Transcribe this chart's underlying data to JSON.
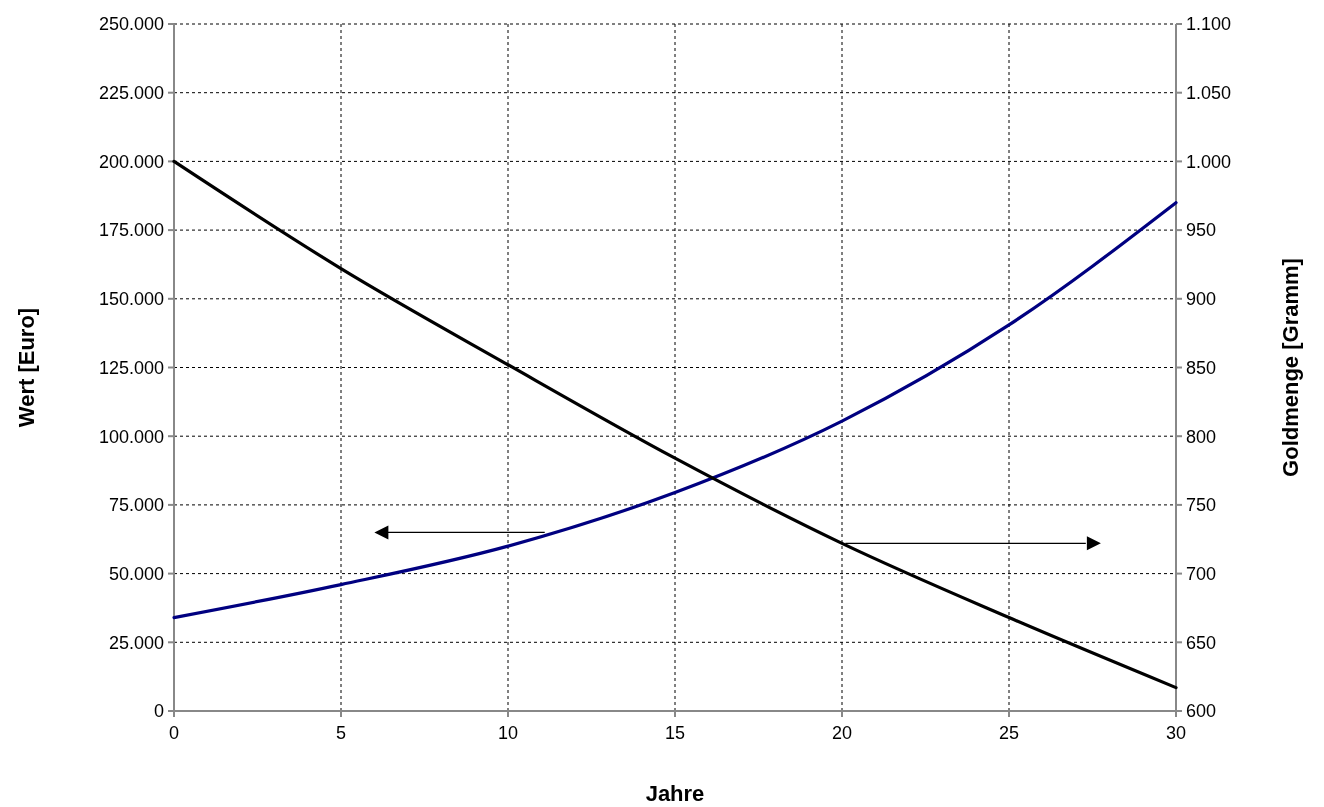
{
  "chart_data": {
    "type": "line",
    "xlabel": "Jahre",
    "ylabel": "Wert [Euro]",
    "y2label": "Goldmenge [Gramm]",
    "x": [
      0,
      5,
      10,
      15,
      20,
      25,
      30
    ],
    "series": [
      {
        "color": "#000080",
        "values": [
          34000,
          46000,
          60000,
          79500,
          105500,
          140500,
          185000
        ]
      },
      {
        "color": "#000000",
        "axis": "y2",
        "values": [
          1000,
          922,
          852,
          784,
          722,
          668,
          617
        ]
      }
    ],
    "xlim": [
      0,
      30
    ],
    "xticks": [
      0,
      5,
      10,
      15,
      20,
      25,
      30
    ],
    "ylim": [
      0,
      250000
    ],
    "yticks": [
      0,
      {
        "value": 25000,
        "label": "25.000"
      },
      {
        "value": 50000,
        "label": "50.000"
      },
      {
        "value": 75000,
        "label": "75.000"
      },
      {
        "value": 100000,
        "label": "100.000"
      },
      {
        "value": 125000,
        "label": "125.000"
      },
      {
        "value": 150000,
        "label": "150.000"
      },
      {
        "value": 175000,
        "label": "175.000"
      },
      {
        "value": 200000,
        "label": "200.000"
      },
      {
        "value": 225000,
        "label": "225.000"
      },
      {
        "value": 250000,
        "label": "250.000"
      }
    ],
    "y2lim": [
      600,
      1100
    ],
    "y2ticks": [
      600,
      650,
      700,
      750,
      800,
      850,
      900,
      950,
      {
        "value": 1000,
        "label": "1.000"
      },
      {
        "value": 1050,
        "label": "1.050"
      },
      {
        "value": 1100,
        "label": "1.100"
      }
    ],
    "grid": true,
    "marker": "none",
    "line_style": "solid"
  }
}
